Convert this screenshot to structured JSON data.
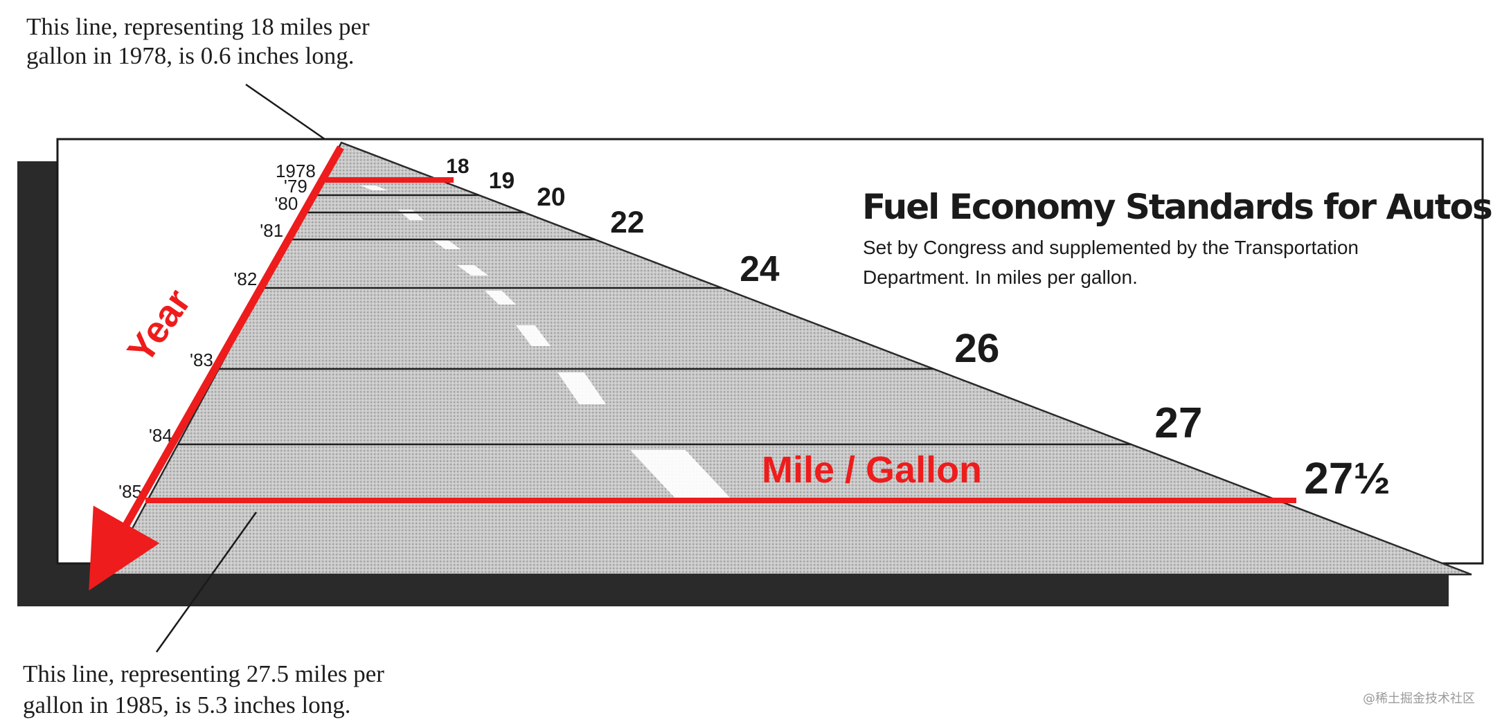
{
  "chart_data": {
    "type": "bar",
    "title": "Fuel Economy Standards for Autos",
    "subtitle": [
      "Set by Congress and supplemented by the Transportation",
      "Department. In miles per gallon."
    ],
    "categories": [
      "1978",
      "'79",
      "'80",
      "'81",
      "'82",
      "'83",
      "'84",
      "'85"
    ],
    "values": [
      18,
      19,
      20,
      22,
      24,
      26,
      27,
      27.5
    ],
    "value_labels": [
      "18",
      "19",
      "20",
      "22",
      "24",
      "26",
      "27",
      "27½"
    ],
    "xlabel": "",
    "ylabel": "",
    "grid": false,
    "legend": "none"
  },
  "annotations": {
    "top_note": [
      "This line, representing 18 miles per",
      "gallon in 1978, is 0.6 inches long."
    ],
    "bottom_note": [
      "This line, representing 27.5 miles per",
      "gallon in 1985, is 5.3 inches long."
    ],
    "year_axis_label": "Year",
    "mpg_axis_label": "Mile / Gallon",
    "accent_color": "#ee1c1c"
  },
  "watermark": "@稀土掘金技术社区"
}
